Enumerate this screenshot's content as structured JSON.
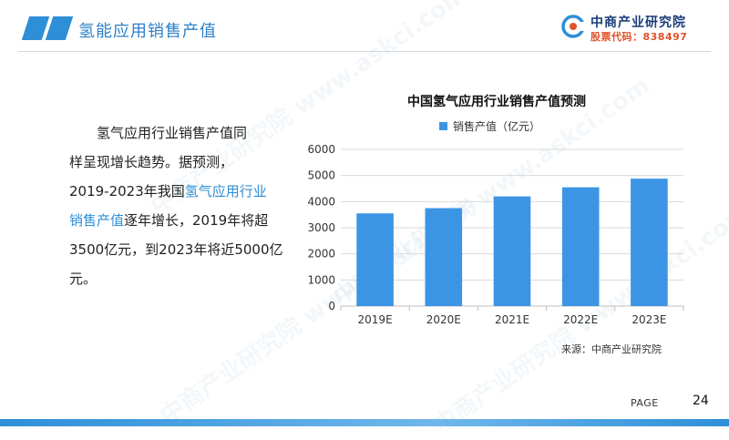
{
  "header": {
    "title": "氢能应用销售产值"
  },
  "logo": {
    "name": "中商产业研究院",
    "stock": "股票代码：838497"
  },
  "paragraph": {
    "l1": "氢气应用行业销售产值同",
    "l2": "样呈现增长趋势。据预测，",
    "l3a": "2019-2023年我国",
    "l3b": "氢气应用行业",
    "l4a": "销售产值",
    "l4b": "逐年增长，2019年将超",
    "l5": "3500亿元，到2023年将近5000亿",
    "l6": "元。"
  },
  "chart_data": {
    "type": "bar",
    "title": "中国氢气应用行业销售产值预测",
    "series": [
      {
        "name": "销售产值（亿元）",
        "values": [
          3550,
          3750,
          4200,
          4550,
          4880
        ],
        "color": "#3c95e4"
      }
    ],
    "categories": [
      "2019E",
      "2020E",
      "2021E",
      "2022E",
      "2023E"
    ],
    "ylim": [
      0,
      6000
    ],
    "yticks": [
      0,
      1000,
      2000,
      3000,
      4000,
      5000,
      6000
    ],
    "grid": true,
    "legend": "top"
  },
  "source": "来源：中商产业研究院",
  "footer": {
    "page_label": "PAGE",
    "page_number": "24"
  },
  "colors": {
    "accent": "#2e8fd6",
    "bar": "#3c95e4"
  }
}
